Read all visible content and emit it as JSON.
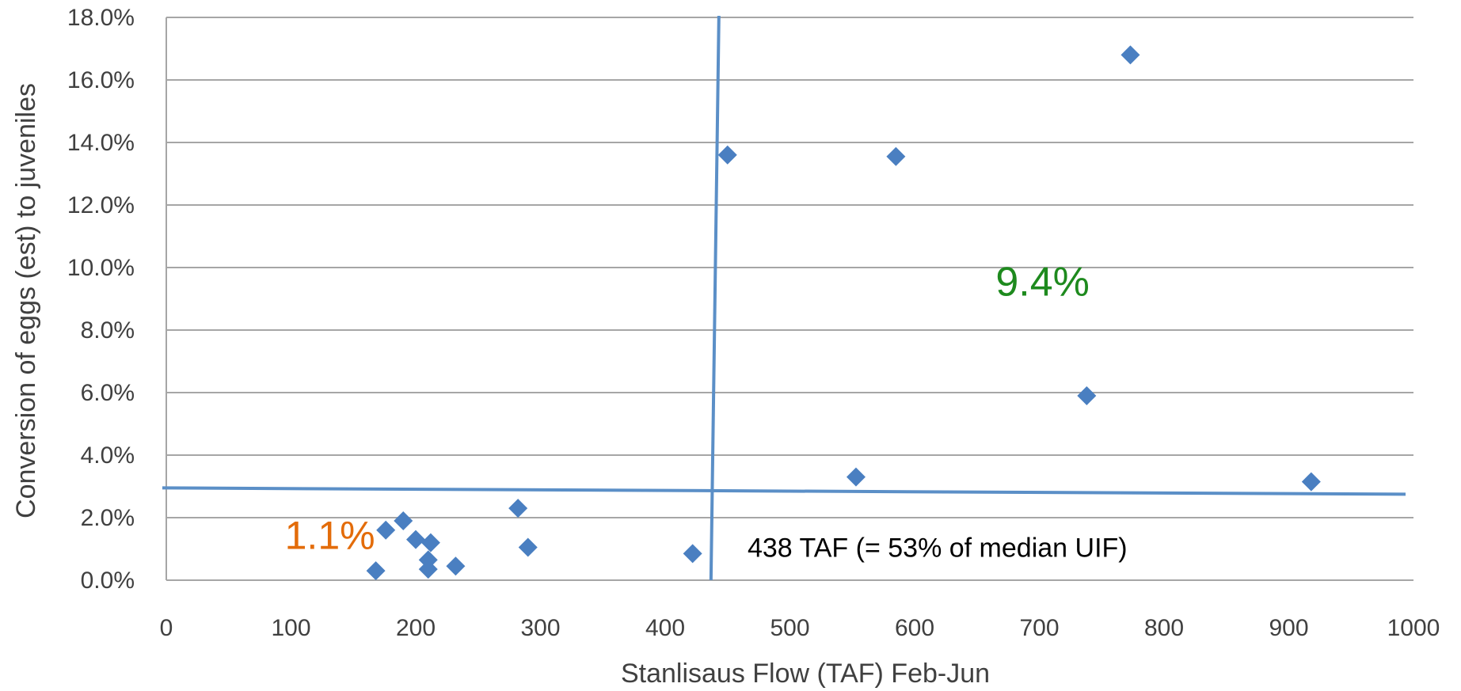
{
  "chart_data": {
    "type": "scatter",
    "title": "",
    "xlabel": "Stanlisaus Flow (TAF) Feb-Jun",
    "ylabel": "Conversion of eggs (est) to juveniles",
    "xlim": [
      0,
      1000
    ],
    "ylim": [
      0,
      0.18
    ],
    "x_ticks": [
      "0",
      "100",
      "200",
      "300",
      "400",
      "500",
      "600",
      "700",
      "800",
      "900",
      "1000"
    ],
    "y_ticks": [
      "0.0%",
      "2.0%",
      "4.0%",
      "6.0%",
      "8.0%",
      "10.0%",
      "12.0%",
      "14.0%",
      "16.0%",
      "18.0%"
    ],
    "grid": true,
    "legend": "none",
    "marker": "diamond",
    "color": "#4a7fc1",
    "series": [
      {
        "points": [
          {
            "x": 168,
            "y": 0.003
          },
          {
            "x": 176,
            "y": 0.016
          },
          {
            "x": 190,
            "y": 0.019
          },
          {
            "x": 200,
            "y": 0.013
          },
          {
            "x": 210,
            "y": 0.0065
          },
          {
            "x": 210,
            "y": 0.0035
          },
          {
            "x": 212,
            "y": 0.012
          },
          {
            "x": 232,
            "y": 0.0045
          },
          {
            "x": 282,
            "y": 0.023
          },
          {
            "x": 290,
            "y": 0.0105
          },
          {
            "x": 422,
            "y": 0.0085
          },
          {
            "x": 450,
            "y": 0.136
          },
          {
            "x": 553,
            "y": 0.033
          },
          {
            "x": 585,
            "y": 0.1355
          },
          {
            "x": 738,
            "y": 0.059
          },
          {
            "x": 773,
            "y": 0.168
          },
          {
            "x": 918,
            "y": 0.0315
          }
        ]
      }
    ],
    "reference_lines": [
      {
        "orientation": "vertical",
        "x": 438
      },
      {
        "orientation": "horizontal",
        "y": 0.0285
      }
    ],
    "annotations": [
      {
        "text": "1.1%",
        "x": 95,
        "y": 0.01,
        "color": "#e36c0a"
      },
      {
        "text": "9.4%",
        "x": 665,
        "y": 0.091,
        "color": "#1e8a1e"
      },
      {
        "text": "438 TAF (= 53% of median UIF)",
        "x": 466,
        "y": 0.0075,
        "color": "#000000"
      }
    ]
  }
}
